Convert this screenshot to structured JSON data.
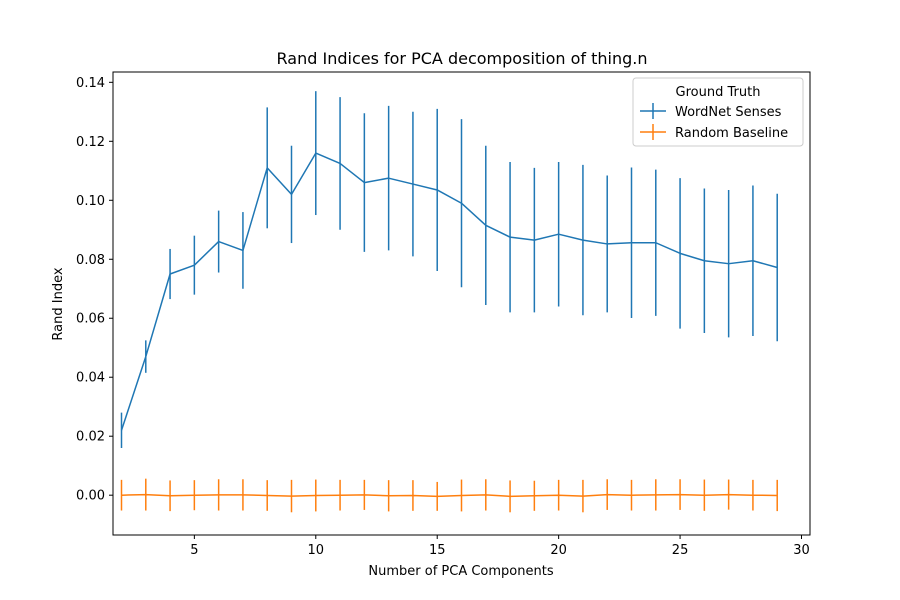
{
  "chart_data": {
    "type": "line",
    "title": "Rand Indices for PCA decomposition of thing.n",
    "xlabel": "Number of PCA Components",
    "ylabel": "Rand Index",
    "xlim": [
      1.65,
      30.35
    ],
    "ylim": [
      -0.0135,
      0.1435
    ],
    "xticks": [
      5,
      10,
      15,
      20,
      25,
      30
    ],
    "yticks": [
      0.0,
      0.02,
      0.04,
      0.06,
      0.08,
      0.1,
      0.12,
      0.14
    ],
    "ytick_labels": [
      "0.00",
      "0.02",
      "0.04",
      "0.06",
      "0.08",
      "0.10",
      "0.12",
      "0.14"
    ],
    "grid": false,
    "legend": {
      "title": "Ground Truth",
      "placement": "top-right"
    },
    "x": [
      2,
      3,
      4,
      5,
      6,
      7,
      8,
      9,
      10,
      11,
      12,
      13,
      14,
      15,
      16,
      17,
      18,
      19,
      20,
      21,
      22,
      23,
      24,
      25,
      26,
      27,
      28,
      29
    ],
    "series": [
      {
        "name": "WordNet Senses",
        "color": "#1f77b4",
        "values": [
          0.022,
          0.047,
          0.075,
          0.078,
          0.086,
          0.083,
          0.111,
          0.102,
          0.116,
          0.1125,
          0.106,
          0.1075,
          0.1055,
          0.1035,
          0.099,
          0.0915,
          0.0875,
          0.0865,
          0.0885,
          0.0865,
          0.0852,
          0.0856,
          0.0856,
          0.082,
          0.0795,
          0.0785,
          0.0795,
          0.0772
        ],
        "errors": [
          0.006,
          0.0055,
          0.0085,
          0.01,
          0.0105,
          0.013,
          0.0205,
          0.0165,
          0.021,
          0.0225,
          0.0235,
          0.0245,
          0.0245,
          0.0275,
          0.0285,
          0.027,
          0.0255,
          0.0245,
          0.0245,
          0.0255,
          0.0232,
          0.0255,
          0.0248,
          0.0255,
          0.0245,
          0.025,
          0.0255,
          0.025
        ]
      },
      {
        "name": "Random Baseline",
        "color": "#ff7f0e",
        "values": [
          0.0,
          0.0002,
          -0.0002,
          0.0,
          0.0001,
          0.0001,
          -0.0001,
          -0.0003,
          -0.0001,
          0.0,
          0.0001,
          -0.0002,
          -0.0001,
          -0.0004,
          -0.0001,
          0.0001,
          -0.0004,
          -0.0002,
          0.0,
          -0.0003,
          0.0002,
          0.0,
          0.0001,
          0.0002,
          0.0,
          0.0002,
          0.0,
          -0.0001
        ],
        "errors": [
          0.0052,
          0.0054,
          0.0052,
          0.0051,
          0.0053,
          0.0053,
          0.0052,
          0.0055,
          0.0054,
          0.0052,
          0.0051,
          0.0053,
          0.0052,
          0.0049,
          0.0054,
          0.0053,
          0.0054,
          0.0051,
          0.0052,
          0.0055,
          0.0052,
          0.0052,
          0.0053,
          0.0052,
          0.0053,
          0.0051,
          0.0052,
          0.0053
        ]
      }
    ]
  }
}
